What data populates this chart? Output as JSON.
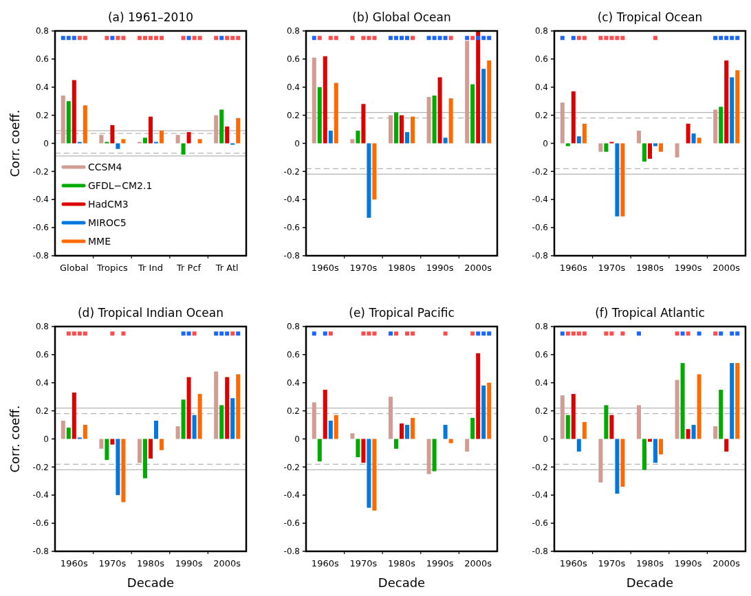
{
  "chart_data": [
    {
      "type": "bar",
      "title": "(a) 1961–2010",
      "ylabel": "Corr. coeff.",
      "categories": [
        "Global",
        "Tropics",
        "Tr Ind",
        "Tr Pcf",
        "Tr Atl"
      ],
      "ylim": [
        -0.8,
        0.8
      ],
      "yticks": [
        -0.8,
        -0.6,
        -0.4,
        -0.2,
        0,
        0.2,
        0.4,
        0.6,
        0.8
      ],
      "legend": "bottom left",
      "marker": "square",
      "ref_lines": [
        {
          "axis": "y",
          "value": 0.09,
          "color": "#b4b4b4",
          "line_style": "solid"
        },
        {
          "axis": "y",
          "value": 0.07,
          "color": "#b4b4b4",
          "line_style": "dashed"
        },
        {
          "axis": "y",
          "value": -0.07,
          "color": "#b4b4b4",
          "line_style": "dashed"
        },
        {
          "axis": "y",
          "value": -0.09,
          "color": "#b4b4b4",
          "line_style": "solid"
        }
      ],
      "series": [
        {
          "name": "CCSM4",
          "color": "#d09c94",
          "values": [
            0.34,
            0.06,
            0.01,
            0.06,
            0.2
          ]
        },
        {
          "name": "GFDL−CM2.1",
          "color": "#00aa00",
          "values": [
            0.3,
            0.01,
            0.04,
            -0.08,
            0.24
          ]
        },
        {
          "name": "HadCM3",
          "color": "#dd0000",
          "values": [
            0.45,
            0.13,
            0.19,
            0.08,
            0.12
          ]
        },
        {
          "name": "MIROC5",
          "color": "#0077dd",
          "values": [
            0.01,
            -0.04,
            0.01,
            0,
            -0.01
          ]
        },
        {
          "name": "MME",
          "color": "#ff6a00",
          "values": [
            0.27,
            0.03,
            0.09,
            0.03,
            0.18
          ]
        },
        {
          "type": "scatter",
          "values": [
            0.75,
            null,
            0.75,
            null,
            0.75
          ],
          "colors": [
            "#1a66ff",
            null,
            "#ff4d4d",
            null,
            "#ff4d4d"
          ]
        },
        {
          "type": "scatter",
          "values": [
            0.75,
            0.75,
            0.75,
            0.75,
            0.75
          ],
          "colors": [
            "#1a66ff",
            "#ff4d4d",
            "#ff4d4d",
            "#ff4d4d",
            "#1a66ff"
          ]
        },
        {
          "type": "scatter",
          "values": [
            0.75,
            0.75,
            0.75,
            0.75,
            0.75
          ],
          "colors": [
            "#1a66ff",
            "#1a66ff",
            "#ff4d4d",
            "#1a66ff",
            "#ff4d4d"
          ]
        },
        {
          "type": "scatter",
          "values": [
            0.75,
            0.75,
            0.75,
            0.75,
            0.75
          ],
          "colors": [
            "#ff4d4d",
            "#ff4d4d",
            "#ff4d4d",
            "#ff4d4d",
            "#ff4d4d"
          ]
        },
        {
          "type": "scatter",
          "values": [
            0.75,
            0.75,
            0.75,
            0.75,
            0.75
          ],
          "colors": [
            "#ff4d4d",
            "#ff4d4d",
            "#ff4d4d",
            "#ff4d4d",
            "#ff4d4d"
          ]
        }
      ]
    },
    {
      "type": "bar",
      "title": "(b) Global Ocean",
      "categories": [
        "1960s",
        "1970s",
        "1980s",
        "1990s",
        "2000s"
      ],
      "ylim": [
        -0.8,
        0.8
      ],
      "yticks": [
        -0.8,
        -0.6,
        -0.4,
        -0.2,
        0,
        0.2,
        0.4,
        0.6,
        0.8
      ],
      "marker": "square",
      "ref_lines": [
        {
          "axis": "y",
          "value": 0.22,
          "color": "#b4b4b4",
          "line_style": "solid"
        },
        {
          "axis": "y",
          "value": 0.18,
          "color": "#b4b4b4",
          "line_style": "dashed"
        },
        {
          "axis": "y",
          "value": -0.18,
          "color": "#b4b4b4",
          "line_style": "dashed"
        },
        {
          "axis": "y",
          "value": -0.22,
          "color": "#b4b4b4",
          "line_style": "solid"
        }
      ],
      "series": [
        {
          "color": "#d09c94",
          "values": [
            0.61,
            0.03,
            0.2,
            0.33,
            0.73
          ]
        },
        {
          "color": "#00aa00",
          "values": [
            0.4,
            0.09,
            0.22,
            0.34,
            0.42
          ]
        },
        {
          "color": "#dd0000",
          "values": [
            0.62,
            0.28,
            0.2,
            0.47,
            0.8
          ]
        },
        {
          "color": "#0077dd",
          "values": [
            0.09,
            -0.53,
            0.08,
            0.04,
            0.53
          ]
        },
        {
          "color": "#ff6a00",
          "values": [
            0.43,
            -0.4,
            0.19,
            0.32,
            0.59
          ]
        },
        {
          "type": "scatter",
          "values": [
            0.75,
            0.75,
            0.75,
            0.75,
            0.75
          ],
          "colors": [
            "#1a66ff",
            "#ff4d4d",
            "#1a66ff",
            "#1a66ff",
            "#1a66ff"
          ]
        },
        {
          "type": "scatter",
          "values": [
            0.75,
            null,
            0.75,
            0.75,
            0.75
          ],
          "colors": [
            "#ff4d4d",
            null,
            "#1a66ff",
            "#1a66ff",
            "#ff4d4d"
          ]
        },
        {
          "type": "scatter",
          "values": [
            null,
            0.75,
            0.75,
            0.75,
            0.75
          ],
          "colors": [
            null,
            "#ff4d4d",
            "#1a66ff",
            "#1a66ff",
            "#1a66ff"
          ]
        },
        {
          "type": "scatter",
          "values": [
            0.75,
            0.75,
            0.75,
            0.75,
            0.75
          ],
          "colors": [
            "#ff4d4d",
            "#ff4d4d",
            "#1a66ff",
            "#1a66ff",
            "#1a66ff"
          ]
        },
        {
          "type": "scatter",
          "values": [
            0.75,
            0.75,
            0.75,
            0.75,
            0.75
          ],
          "colors": [
            "#ff4d4d",
            "#ff4d4d",
            "#ff4d4d",
            "#ff4d4d",
            "#1a66ff"
          ]
        }
      ]
    },
    {
      "type": "bar",
      "title": "(c) Tropical Ocean",
      "categories": [
        "1960s",
        "1970s",
        "1980s",
        "1990s",
        "2000s"
      ],
      "ylim": [
        -0.8,
        0.8
      ],
      "yticks": [
        -0.8,
        -0.6,
        -0.4,
        -0.2,
        0,
        0.2,
        0.4,
        0.6,
        0.8
      ],
      "marker": "square",
      "ref_lines": [
        {
          "axis": "y",
          "value": 0.22,
          "color": "#b4b4b4",
          "line_style": "solid"
        },
        {
          "axis": "y",
          "value": 0.18,
          "color": "#b4b4b4",
          "line_style": "dashed"
        },
        {
          "axis": "y",
          "value": -0.18,
          "color": "#b4b4b4",
          "line_style": "dashed"
        },
        {
          "axis": "y",
          "value": -0.22,
          "color": "#b4b4b4",
          "line_style": "solid"
        }
      ],
      "series": [
        {
          "color": "#d09c94",
          "values": [
            0.29,
            -0.06,
            0.09,
            -0.1,
            0.24
          ]
        },
        {
          "color": "#00aa00",
          "values": [
            -0.02,
            -0.06,
            -0.13,
            0,
            0.26
          ]
        },
        {
          "color": "#dd0000",
          "values": [
            0.37,
            0.01,
            -0.11,
            0.14,
            0.59
          ]
        },
        {
          "color": "#0077dd",
          "values": [
            0.05,
            -0.52,
            -0.02,
            0.07,
            0.47
          ]
        },
        {
          "color": "#ff6a00",
          "values": [
            0.14,
            -0.52,
            -0.06,
            0.04,
            0.52
          ]
        },
        {
          "type": "scatter",
          "values": [
            0.75,
            0.75,
            null,
            null,
            0.75
          ],
          "colors": [
            "#1a66ff",
            "#ff4d4d",
            null,
            null,
            "#1a66ff"
          ]
        },
        {
          "type": "scatter",
          "values": [
            null,
            0.75,
            null,
            null,
            0.75
          ],
          "colors": [
            null,
            "#ff4d4d",
            null,
            null,
            "#1a66ff"
          ]
        },
        {
          "type": "scatter",
          "values": [
            0.75,
            0.75,
            null,
            null,
            0.75
          ],
          "colors": [
            "#1a66ff",
            "#ff4d4d",
            null,
            null,
            "#1a66ff"
          ]
        },
        {
          "type": "scatter",
          "values": [
            0.75,
            0.75,
            0.75,
            null,
            0.75
          ],
          "colors": [
            "#ff4d4d",
            "#ff4d4d",
            "#ff4d4d",
            null,
            "#1a66ff"
          ]
        },
        {
          "type": "scatter",
          "values": [
            0.75,
            0.75,
            null,
            null,
            0.75
          ],
          "colors": [
            "#ff4d4d",
            "#ff4d4d",
            null,
            null,
            "#1a66ff"
          ]
        }
      ]
    },
    {
      "type": "bar",
      "title": "(d) Tropical Indian Ocean",
      "xlabel": "Decade",
      "ylabel": "Corr. coeff.",
      "categories": [
        "1960s",
        "1970s",
        "1980s",
        "1990s",
        "2000s"
      ],
      "ylim": [
        -0.8,
        0.8
      ],
      "yticks": [
        -0.8,
        -0.6,
        -0.4,
        -0.2,
        0,
        0.2,
        0.4,
        0.6,
        0.8
      ],
      "marker": "square",
      "ref_lines": [
        {
          "axis": "y",
          "value": 0.22,
          "color": "#b4b4b4",
          "line_style": "solid"
        },
        {
          "axis": "y",
          "value": 0.18,
          "color": "#b4b4b4",
          "line_style": "dashed"
        },
        {
          "axis": "y",
          "value": -0.18,
          "color": "#b4b4b4",
          "line_style": "dashed"
        },
        {
          "axis": "y",
          "value": -0.22,
          "color": "#b4b4b4",
          "line_style": "solid"
        }
      ],
      "series": [
        {
          "color": "#d09c94",
          "values": [
            0.13,
            -0.07,
            -0.17,
            0.09,
            0.48
          ]
        },
        {
          "color": "#00aa00",
          "values": [
            0.08,
            -0.15,
            -0.28,
            0.28,
            0.24
          ]
        },
        {
          "color": "#dd0000",
          "values": [
            0.33,
            -0.04,
            -0.14,
            0.44,
            0.44
          ]
        },
        {
          "color": "#0077dd",
          "values": [
            0.01,
            -0.4,
            0.13,
            0.17,
            0.29
          ]
        },
        {
          "color": "#ff6a00",
          "values": [
            0.1,
            -0.45,
            -0.08,
            0.32,
            0.46
          ]
        },
        {
          "type": "scatter",
          "values": [
            null,
            null,
            null,
            null,
            0.75
          ],
          "colors": [
            null,
            null,
            null,
            null,
            "#1a66ff"
          ]
        },
        {
          "type": "scatter",
          "values": [
            0.75,
            null,
            null,
            0.75,
            0.75
          ],
          "colors": [
            "#ff4d4d",
            null,
            null,
            "#1a66ff",
            "#1a66ff"
          ]
        },
        {
          "type": "scatter",
          "values": [
            0.75,
            0.75,
            null,
            0.75,
            0.75
          ],
          "colors": [
            "#ff4d4d",
            "#ff4d4d",
            null,
            "#1a66ff",
            "#1a66ff"
          ]
        },
        {
          "type": "scatter",
          "values": [
            0.75,
            null,
            null,
            0.75,
            0.75
          ],
          "colors": [
            "#ff4d4d",
            null,
            null,
            "#ff4d4d",
            "#ff4d4d"
          ]
        },
        {
          "type": "scatter",
          "values": [
            0.75,
            0.75,
            null,
            null,
            0.75
          ],
          "colors": [
            "#ff4d4d",
            "#ff4d4d",
            null,
            null,
            "#1a66ff"
          ]
        }
      ]
    },
    {
      "type": "bar",
      "title": "(e) Tropical Pacific",
      "xlabel": "Decade",
      "categories": [
        "1960s",
        "1970s",
        "1980s",
        "1990s",
        "2000s"
      ],
      "ylim": [
        -0.8,
        0.8
      ],
      "yticks": [
        -0.8,
        -0.6,
        -0.4,
        -0.2,
        0,
        0.2,
        0.4,
        0.6,
        0.8
      ],
      "marker": "square",
      "ref_lines": [
        {
          "axis": "y",
          "value": 0.22,
          "color": "#b4b4b4",
          "line_style": "solid"
        },
        {
          "axis": "y",
          "value": 0.18,
          "color": "#b4b4b4",
          "line_style": "dashed"
        },
        {
          "axis": "y",
          "value": -0.18,
          "color": "#b4b4b4",
          "line_style": "dashed"
        },
        {
          "axis": "y",
          "value": -0.22,
          "color": "#b4b4b4",
          "line_style": "solid"
        }
      ],
      "series": [
        {
          "color": "#d09c94",
          "values": [
            0.26,
            0.04,
            0.3,
            -0.25,
            -0.09
          ]
        },
        {
          "color": "#00aa00",
          "values": [
            -0.16,
            -0.13,
            -0.07,
            -0.23,
            0.15
          ]
        },
        {
          "color": "#dd0000",
          "values": [
            0.35,
            -0.17,
            0.11,
            0,
            0.61
          ]
        },
        {
          "color": "#0077dd",
          "values": [
            0.13,
            -0.49,
            0.1,
            0.1,
            0.38
          ]
        },
        {
          "color": "#ff6a00",
          "values": [
            0.17,
            -0.51,
            0.15,
            -0.03,
            0.4
          ]
        },
        {
          "type": "scatter",
          "values": [
            0.75,
            null,
            0.75,
            null,
            null
          ],
          "colors": [
            "#1a66ff",
            null,
            "#1a66ff",
            null,
            null
          ]
        },
        {
          "type": "scatter",
          "values": [
            null,
            null,
            0.75,
            null,
            0.75
          ],
          "colors": [
            null,
            null,
            "#ff4d4d",
            null,
            "#ff4d4d"
          ]
        },
        {
          "type": "scatter",
          "values": [
            0.75,
            0.75,
            null,
            null,
            0.75
          ],
          "colors": [
            "#1a66ff",
            "#ff4d4d",
            null,
            null,
            "#1a66ff"
          ]
        },
        {
          "type": "scatter",
          "values": [
            0.75,
            0.75,
            0.75,
            0.75,
            0.75
          ],
          "colors": [
            "#ff4d4d",
            "#ff4d4d",
            "#ff4d4d",
            "#ff4d4d",
            "#1a66ff"
          ]
        },
        {
          "type": "scatter",
          "values": [
            null,
            0.75,
            0.75,
            null,
            0.75
          ],
          "colors": [
            null,
            "#ff4d4d",
            "#ff4d4d",
            null,
            "#1a66ff"
          ]
        }
      ]
    },
    {
      "type": "bar",
      "title": "(f) Tropical Atlantic",
      "xlabel": "Decade",
      "categories": [
        "1960s",
        "1970s",
        "1980s",
        "1990s",
        "2000s"
      ],
      "ylim": [
        -0.8,
        0.8
      ],
      "yticks": [
        -0.8,
        -0.6,
        -0.4,
        -0.2,
        0,
        0.2,
        0.4,
        0.6,
        0.8
      ],
      "marker": "square",
      "ref_lines": [
        {
          "axis": "y",
          "value": 0.22,
          "color": "#b4b4b4",
          "line_style": "solid"
        },
        {
          "axis": "y",
          "value": 0.18,
          "color": "#b4b4b4",
          "line_style": "dashed"
        },
        {
          "axis": "y",
          "value": -0.18,
          "color": "#b4b4b4",
          "line_style": "dashed"
        },
        {
          "axis": "y",
          "value": -0.22,
          "color": "#b4b4b4",
          "line_style": "solid"
        }
      ],
      "series": [
        {
          "color": "#d09c94",
          "values": [
            0.31,
            -0.31,
            0.24,
            0.42,
            0.09
          ]
        },
        {
          "color": "#00aa00",
          "values": [
            0.17,
            0.24,
            -0.22,
            0.54,
            0.35
          ]
        },
        {
          "color": "#dd0000",
          "values": [
            0.32,
            0.17,
            -0.02,
            0.07,
            -0.09
          ]
        },
        {
          "color": "#0077dd",
          "values": [
            -0.09,
            -0.39,
            -0.17,
            0.1,
            0.54
          ]
        },
        {
          "color": "#ff6a00",
          "values": [
            0.12,
            -0.34,
            -0.11,
            0.46,
            0.54
          ]
        },
        {
          "type": "scatter",
          "values": [
            0.75,
            null,
            0.75,
            0.75,
            0.75
          ],
          "colors": [
            "#1a66ff",
            null,
            "#1a66ff",
            "#ff4d4d",
            "#ff4d4d"
          ]
        },
        {
          "type": "scatter",
          "values": [
            0.75,
            0.75,
            null,
            0.75,
            0.75
          ],
          "colors": [
            "#ff4d4d",
            "#ff4d4d",
            null,
            "#1a66ff",
            "#1a66ff"
          ]
        },
        {
          "type": "scatter",
          "values": [
            0.75,
            0.75,
            null,
            0.75,
            null
          ],
          "colors": [
            "#ff4d4d",
            "#ff4d4d",
            null,
            "#ff4d4d",
            null
          ]
        },
        {
          "type": "scatter",
          "values": [
            0.75,
            null,
            null,
            null,
            0.75
          ],
          "colors": [
            "#ff4d4d",
            null,
            null,
            null,
            "#1a66ff"
          ]
        },
        {
          "type": "scatter",
          "values": [
            0.75,
            0.75,
            null,
            0.75,
            0.75
          ],
          "colors": [
            "#ff4d4d",
            "#ff4d4d",
            null,
            "#1a66ff",
            "#1a66ff"
          ]
        }
      ]
    }
  ]
}
